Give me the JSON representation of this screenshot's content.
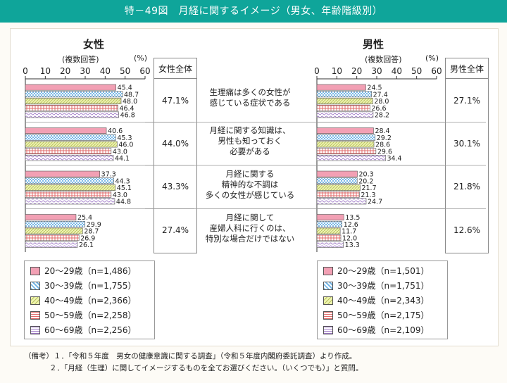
{
  "title": "特－49図　月経に関するイメージ（男女、年齢階級別）",
  "female": {
    "label": "女性",
    "axis_note": "(複数回答)",
    "unit": "(%)",
    "total_header": "女性全体",
    "totals": [
      "47.1%",
      "44.0%",
      "43.3%",
      "27.4%"
    ],
    "legend": [
      "20～29歳（n=1,486）",
      "30～39歳（n=1,755）",
      "40～49歳（n=2,366）",
      "50～59歳（n=2,258）",
      "60～69歳（n=2,256）"
    ]
  },
  "male": {
    "label": "男性",
    "axis_note": "(複数回答)",
    "unit": "(%)",
    "total_header": "男性全体",
    "totals": [
      "27.1%",
      "30.1%",
      "21.8%",
      "12.6%"
    ],
    "legend": [
      "20～29歳（n=1,501）",
      "30～39歳（n=1,751）",
      "40～49歳（n=2,343）",
      "50～59歳（n=2,175）",
      "60～69歳（n=2,109）"
    ]
  },
  "items": [
    [
      "生理痛は多くの女性が",
      "感じている症状である"
    ],
    [
      "月経に関する知識は、",
      "男性も知っておく",
      "必要がある"
    ],
    [
      "月経に関する",
      "精神的な不調は",
      "多くの女性が感じている"
    ],
    [
      "月経に関して",
      "産婦人科に行くのは、",
      "特別な場合だけではない"
    ]
  ],
  "notes": [
    "（備考）１．「令和５年度　男女の健康意識に関する調査」（令和５年度内閣府委託調査）より作成。",
    "２．「月経（生理）に関してイメージするものを全てお選びください。（いくつでも）」と質問。"
  ],
  "colors": {
    "header": "#0fa59a",
    "age20": "#f2a0b4",
    "age30": "#a8d4f0",
    "age40": "#e8f0a0",
    "age50": "#f4c0c0",
    "age60": "#e8d8f0"
  },
  "chart_data": [
    {
      "type": "bar",
      "orientation": "horizontal",
      "title": "女性",
      "categories": [
        "生理痛は多くの女性が感じている症状である",
        "月経に関する知識は、男性も知っておく必要がある",
        "月経に関する精神的な不調は多くの女性が感じている",
        "月経に関して産婦人科に行くのは、特別な場合だけではない"
      ],
      "xlim": [
        0,
        60
      ],
      "ticks": [
        "0",
        "10",
        "20",
        "30",
        "40",
        "50",
        "60"
      ],
      "series": [
        {
          "name": "20～29歳（n=1,486）",
          "values": [
            45.4,
            40.6,
            37.3,
            25.4
          ]
        },
        {
          "name": "30～39歳（n=1,755）",
          "values": [
            48.7,
            45.3,
            44.3,
            29.9
          ]
        },
        {
          "name": "40～49歳（n=2,366）",
          "values": [
            48.0,
            46.0,
            45.1,
            28.7
          ]
        },
        {
          "name": "50～59歳（n=2,258）",
          "values": [
            46.4,
            43.0,
            43.0,
            26.9
          ]
        },
        {
          "name": "60～69歳（n=2,256）",
          "values": [
            46.8,
            44.1,
            44.8,
            26.1
          ]
        }
      ]
    },
    {
      "type": "bar",
      "orientation": "horizontal",
      "title": "男性",
      "categories": [
        "生理痛は多くの女性が感じている症状である",
        "月経に関する知識は、男性も知っておく必要がある",
        "月経に関する精神的な不調は多くの女性が感じている",
        "月経に関して産婦人科に行くのは、特別な場合だけではない"
      ],
      "xlim": [
        0,
        60
      ],
      "ticks": [
        "0",
        "10",
        "20",
        "30",
        "40",
        "50",
        "60"
      ],
      "series": [
        {
          "name": "20～29歳（n=1,501）",
          "values": [
            24.5,
            28.4,
            20.3,
            13.5
          ]
        },
        {
          "name": "30～39歳（n=1,751）",
          "values": [
            27.4,
            29.2,
            20.2,
            12.6
          ]
        },
        {
          "name": "40～49歳（n=2,343）",
          "values": [
            28.0,
            28.6,
            21.7,
            11.7
          ]
        },
        {
          "name": "50～59歳（n=2,175）",
          "values": [
            26.6,
            29.6,
            21.3,
            12.0
          ]
        },
        {
          "name": "60～69歳（n=2,109）",
          "values": [
            28.2,
            34.4,
            24.7,
            13.3
          ]
        }
      ]
    }
  ]
}
